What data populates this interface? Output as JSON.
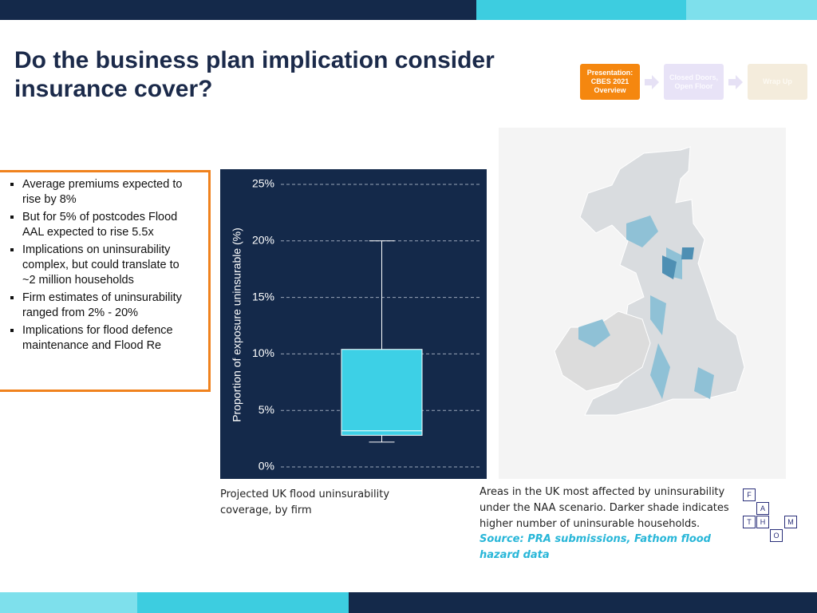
{
  "header": {
    "title": "Do the business plan implication consider insurance cover?"
  },
  "nav": {
    "steps": [
      "Presentation: CBES 2021 Overview",
      "Closed Doors, Open Floor",
      "Wrap Up"
    ]
  },
  "bullets": [
    "Average premiums expected to rise by 8%",
    "But for 5% of postcodes Flood AAL expected to rise 5.5x",
    "Implications on uninsurability complex, but could translate to ~2 million households",
    "Firm estimates of uninsurability ranged from 2% - 20%",
    "Implications for flood defence maintenance and Flood Re"
  ],
  "chart_data": {
    "type": "box",
    "ylabel": "Proportion of exposure uninsurable (%)",
    "series": [
      {
        "color": "#3dd0e6",
        "whislo": 2.2,
        "q1": 2.8,
        "med": 3.2,
        "q3": 10.4,
        "whishi": 20
      }
    ],
    "ylim": [
      0,
      25
    ],
    "yticks": [
      {
        "value": 0,
        "label": "0%"
      },
      {
        "value": 5,
        "label": "5%"
      },
      {
        "value": 10,
        "label": "10%"
      },
      {
        "value": 15,
        "label": "15%"
      },
      {
        "value": 20,
        "label": "20%"
      },
      {
        "value": 25,
        "label": "25%"
      }
    ],
    "grid": true
  },
  "chart_caption": "Projected UK flood uninsurability coverage, by firm",
  "map_caption": "Areas in the UK most affected by uninsurability under the NAA scenario. Darker shade indicates higher number of uninsurable households.",
  "source": "Source: PRA submissions, Fathom flood hazard data",
  "logo": {
    "letters": [
      "F",
      "A",
      "T",
      "H",
      "M",
      "O"
    ]
  }
}
